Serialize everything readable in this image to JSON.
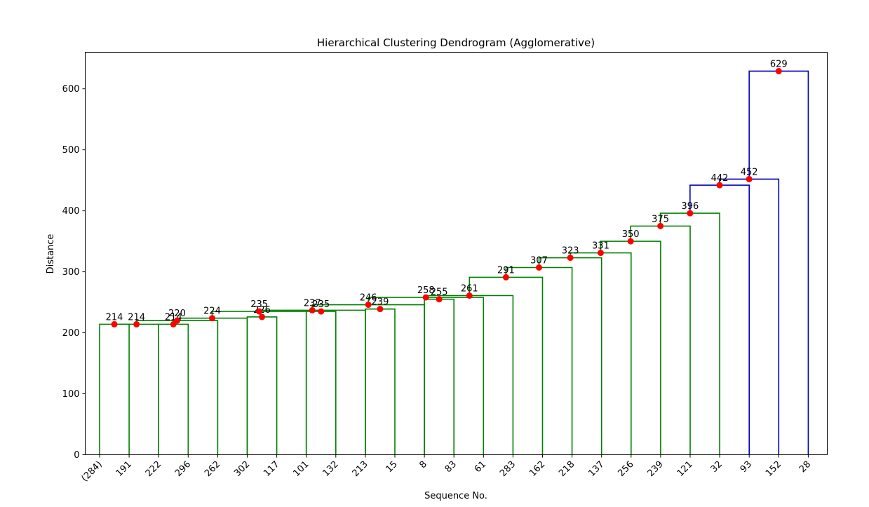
{
  "chart_data": {
    "type": "dendrogram",
    "title": "Hierarchical Clustering Dendrogram (Agglomerative)",
    "xlabel": "Sequence No.",
    "ylabel": "Distance",
    "ylim": [
      0,
      660
    ],
    "yticks": [
      0,
      100,
      200,
      300,
      400,
      500,
      600
    ],
    "leaves": [
      "(284)",
      "191",
      "222",
      "296",
      "262",
      "302",
      "117",
      "101",
      "132",
      "213",
      "15",
      "8",
      "83",
      "61",
      "283",
      "162",
      "218",
      "137",
      "256",
      "239",
      "121",
      "32",
      "93",
      "152",
      "28"
    ],
    "merges": [
      {
        "left": {
          "leaf": 0
        },
        "right": {
          "leaf": 1
        },
        "height": 214,
        "label": "214",
        "color": "#008000"
      },
      {
        "left": {
          "node": 0
        },
        "right": {
          "leaf": 2
        },
        "height": 214,
        "label": "214",
        "color": "#008000"
      },
      {
        "left": {
          "leaf": 2
        },
        "right": {
          "leaf": 3
        },
        "height": 214,
        "label": "214",
        "color": "#008000"
      },
      {
        "left": {
          "node": 1
        },
        "right": {
          "leaf": 4
        },
        "height": 220,
        "label": "220",
        "color": "#008000"
      },
      {
        "left": {
          "node": 3
        },
        "right": {
          "leaf": 5
        },
        "height": 224,
        "label": "224",
        "color": "#008000"
      },
      {
        "left": {
          "leaf": 5
        },
        "right": {
          "leaf": 6
        },
        "height": 226,
        "label": "226",
        "color": "#008000"
      },
      {
        "left": {
          "node": 4
        },
        "right": {
          "leaf": 7
        },
        "height": 235,
        "label": "235",
        "color": "#008000"
      },
      {
        "left": {
          "leaf": 7
        },
        "right": {
          "leaf": 8
        },
        "height": 235,
        "label": "235",
        "color": "#008000"
      },
      {
        "left": {
          "node": 6
        },
        "right": {
          "leaf": 9
        },
        "height": 237,
        "label": "237",
        "color": "#008000"
      },
      {
        "left": {
          "leaf": 9
        },
        "right": {
          "leaf": 10
        },
        "height": 239,
        "label": "239",
        "color": "#008000"
      },
      {
        "left": {
          "node": 8
        },
        "right": {
          "leaf": 11
        },
        "height": 246,
        "label": "246",
        "color": "#008000"
      },
      {
        "left": {
          "leaf": 11
        },
        "right": {
          "leaf": 12
        },
        "height": 255,
        "label": "255",
        "color": "#008000"
      },
      {
        "left": {
          "node": 10
        },
        "right": {
          "leaf": 13
        },
        "height": 258,
        "label": "258",
        "color": "#008000"
      },
      {
        "left": {
          "node": 12
        },
        "right": {
          "leaf": 14
        },
        "height": 261,
        "label": "261",
        "color": "#008000"
      },
      {
        "left": {
          "node": 13
        },
        "right": {
          "leaf": 15
        },
        "height": 291,
        "label": "291",
        "color": "#008000"
      },
      {
        "left": {
          "node": 14
        },
        "right": {
          "leaf": 16
        },
        "height": 307,
        "label": "307",
        "color": "#008000"
      },
      {
        "left": {
          "node": 15
        },
        "right": {
          "leaf": 17
        },
        "height": 323,
        "label": "323",
        "color": "#008000"
      },
      {
        "left": {
          "node": 16
        },
        "right": {
          "leaf": 18
        },
        "height": 331,
        "label": "331",
        "color": "#008000"
      },
      {
        "left": {
          "node": 17
        },
        "right": {
          "leaf": 19
        },
        "height": 350,
        "label": "350",
        "color": "#008000"
      },
      {
        "left": {
          "node": 18
        },
        "right": {
          "leaf": 20
        },
        "height": 375,
        "label": "375",
        "color": "#008000"
      },
      {
        "left": {
          "node": 19
        },
        "right": {
          "leaf": 21
        },
        "height": 396,
        "label": "396",
        "color": "#008000"
      },
      {
        "left": {
          "node": 20
        },
        "right": {
          "leaf": 22
        },
        "height": 442,
        "label": "442",
        "color": "#0000c0"
      },
      {
        "left": {
          "node": 21
        },
        "right": {
          "leaf": 23
        },
        "height": 452,
        "label": "452",
        "color": "#0000c0"
      },
      {
        "left": {
          "node": 22
        },
        "right": {
          "leaf": 24
        },
        "height": 629,
        "label": "629",
        "color": "#0000c0"
      }
    ],
    "marker_color": "#ff0000",
    "grid": false,
    "legend": "none"
  }
}
